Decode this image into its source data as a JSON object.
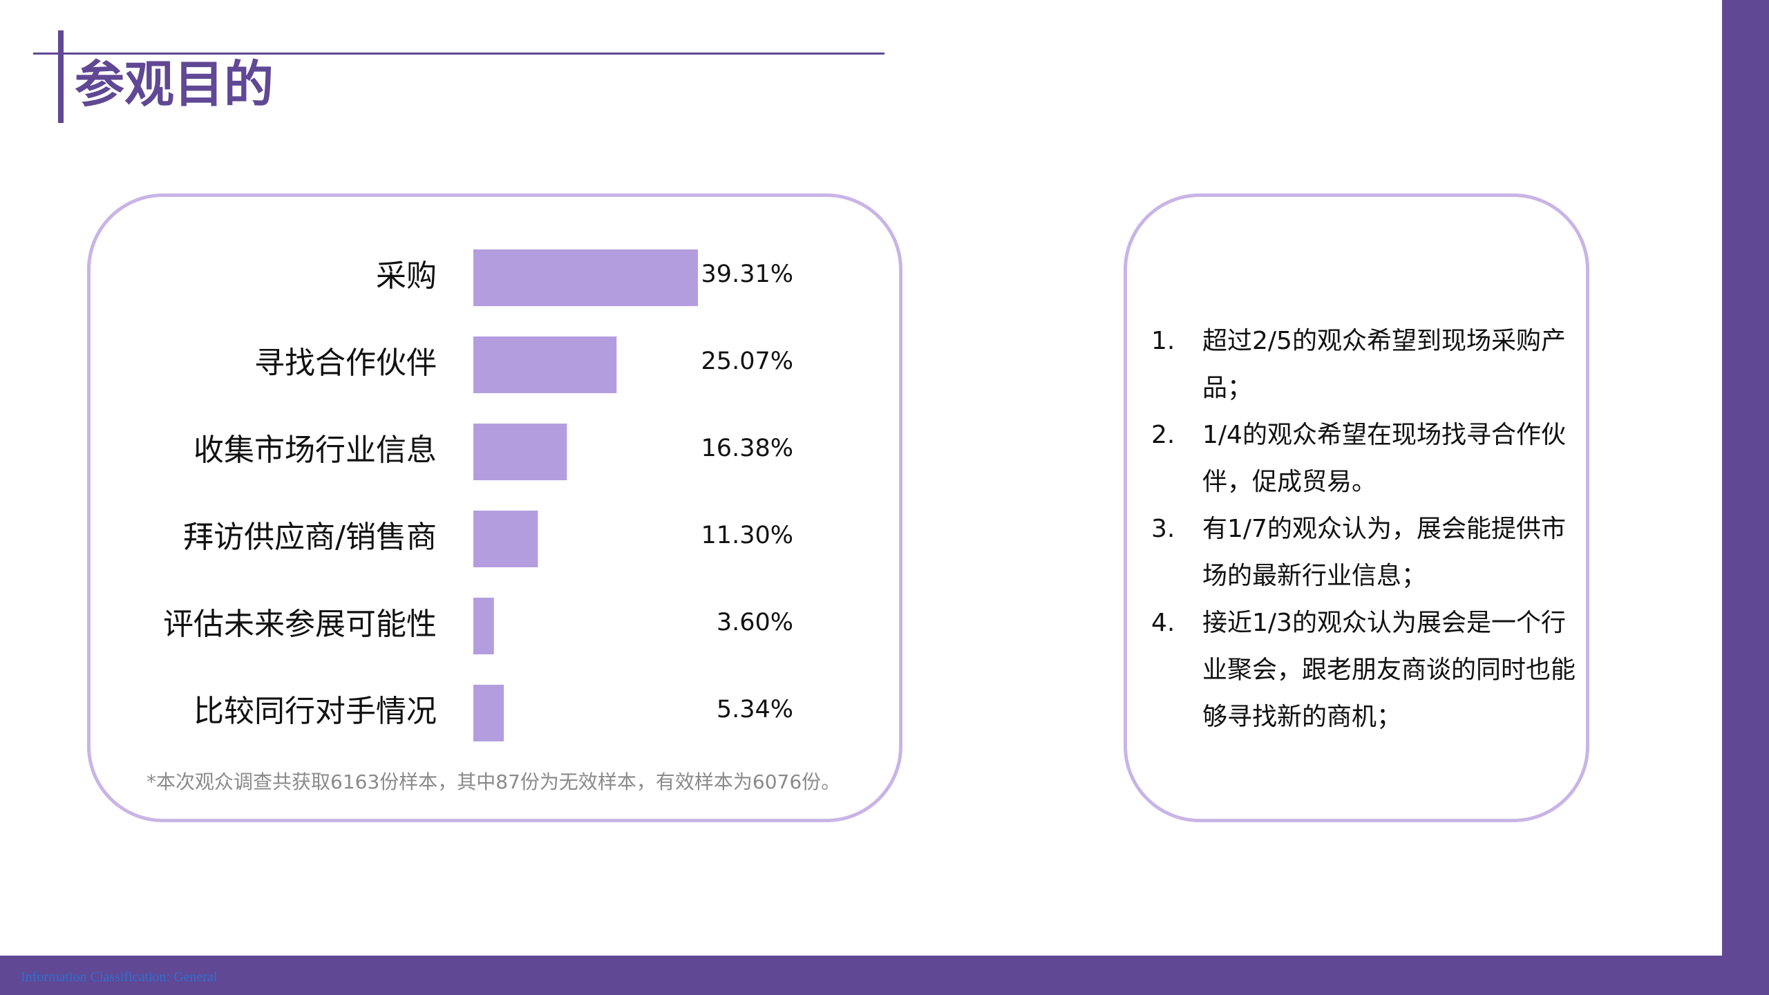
{
  "title": "参观目的",
  "chart_data": {
    "type": "bar",
    "orientation": "horizontal",
    "categories": [
      "采购",
      "寻找合作伙伴",
      "收集市场行业信息",
      "拜访供应商/销售商",
      "评估未来参展可能性",
      "比较同行对手情况"
    ],
    "values": [
      39.31,
      25.07,
      16.38,
      11.3,
      3.6,
      5.34
    ],
    "value_labels": [
      "39.31%",
      "25.07%",
      "16.38%",
      "11.30%",
      "3.60%",
      "5.34%"
    ],
    "bar_color": "#b39ddf",
    "title": "",
    "xlabel": "",
    "ylabel": ""
  },
  "footnote": "*本次观众调查共获取6163份样本，其中87份为无效样本，有效样本为6076份。",
  "notes": [
    {
      "num": "1.",
      "text": "超过2/5的观众希望到现场采购产品；"
    },
    {
      "num": "2.",
      "text": "1/4的观众希望在现场找寻合作伙伴，促成贸易。"
    },
    {
      "num": "3.",
      "text": "有1/7的观众认为，展会能提供市场的最新行业信息；"
    },
    {
      "num": "4.",
      "text": "接近1/3的观众认为展会是一个行业聚会，跟老朋友商谈的同时也能够寻找新的商机；"
    }
  ],
  "footer": {
    "classification": "Information Classification: General"
  },
  "colors": {
    "accent": "#604894",
    "panel_border": "#c9b4e6",
    "bar": "#b39ddf"
  }
}
